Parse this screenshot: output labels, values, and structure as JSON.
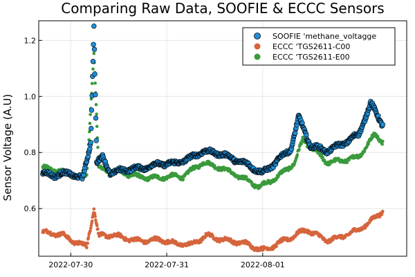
{
  "chart_data": {
    "type": "scatter",
    "title": "Comparing Raw Data, SOOFIE & ECCC Sensors",
    "xlabel": "",
    "ylabel": "Sensor Voltage (A.U)",
    "x_axis": "date",
    "x_ticks": [
      "2022-07-30",
      "2022-07-31",
      "2022-08-01"
    ],
    "xlim": [
      "2022-07-29 16:00",
      "2022-08-02 12:00"
    ],
    "y_ticks": [
      "0.6",
      "0.8",
      "1.0",
      "1.2"
    ],
    "ylim": [
      0.43,
      1.27
    ],
    "grid": true,
    "legend_position": "top-right",
    "series": [
      {
        "name": "SOOFIE 'methane_voltagge",
        "color": "#1f8ed8",
        "points": [
          [
            "2022-07-29 17:00",
            0.72
          ],
          [
            "2022-07-29 20:00",
            0.715
          ],
          [
            "2022-07-30 00:00",
            0.73
          ],
          [
            "2022-07-30 03:00",
            0.71
          ],
          [
            "2022-07-30 05:00",
            0.84
          ],
          [
            "2022-07-30 05:48",
            1.25
          ],
          [
            "2022-07-30 06:30",
            0.76
          ],
          [
            "2022-07-30 08:00",
            0.78
          ],
          [
            "2022-07-30 10:00",
            0.72
          ],
          [
            "2022-07-30 14:00",
            0.74
          ],
          [
            "2022-07-30 18:00",
            0.75
          ],
          [
            "2022-07-30 22:00",
            0.76
          ],
          [
            "2022-07-31 02:00",
            0.755
          ],
          [
            "2022-07-31 06:00",
            0.78
          ],
          [
            "2022-07-31 09:00",
            0.81
          ],
          [
            "2022-07-31 13:00",
            0.8
          ],
          [
            "2022-07-31 17:00",
            0.77
          ],
          [
            "2022-07-31 20:00",
            0.755
          ],
          [
            "2022-08-01 00:00",
            0.73
          ],
          [
            "2022-08-01 04:00",
            0.78
          ],
          [
            "2022-08-01 07:00",
            0.81
          ],
          [
            "2022-08-01 09:00",
            0.92
          ],
          [
            "2022-08-01 12:00",
            0.82
          ],
          [
            "2022-08-01 16:00",
            0.81
          ],
          [
            "2022-08-02 00:00",
            0.86
          ],
          [
            "2022-08-02 03:00",
            0.97
          ],
          [
            "2022-08-02 06:00",
            0.9
          ]
        ]
      },
      {
        "name": "ECCC 'TGS2611-C00",
        "color": "#d5653d",
        "points": [
          [
            "2022-07-29 17:00",
            0.51
          ],
          [
            "2022-07-29 22:00",
            0.505
          ],
          [
            "2022-07-30 02:00",
            0.48
          ],
          [
            "2022-07-30 04:00",
            0.47
          ],
          [
            "2022-07-30 05:48",
            0.6
          ],
          [
            "2022-07-30 07:00",
            0.5
          ],
          [
            "2022-07-30 10:00",
            0.5
          ],
          [
            "2022-07-30 16:00",
            0.49
          ],
          [
            "2022-07-30 22:00",
            0.49
          ],
          [
            "2022-07-31 02:00",
            0.47
          ],
          [
            "2022-07-31 06:00",
            0.47
          ],
          [
            "2022-07-31 10:00",
            0.51
          ],
          [
            "2022-07-31 16:00",
            0.48
          ],
          [
            "2022-07-31 20:00",
            0.47
          ],
          [
            "2022-08-01 00:00",
            0.455
          ],
          [
            "2022-08-01 04:00",
            0.48
          ],
          [
            "2022-08-01 08:00",
            0.5
          ],
          [
            "2022-08-01 11:00",
            0.52
          ],
          [
            "2022-08-01 16:00",
            0.49
          ],
          [
            "2022-08-02 00:00",
            0.52
          ],
          [
            "2022-08-02 03:00",
            0.55
          ],
          [
            "2022-08-02 06:00",
            0.59
          ]
        ]
      },
      {
        "name": "ECCC 'TGS2611-E00",
        "color": "#3a9a3d",
        "points": [
          [
            "2022-07-29 17:00",
            0.74
          ],
          [
            "2022-07-29 22:00",
            0.73
          ],
          [
            "2022-07-30 02:00",
            0.72
          ],
          [
            "2022-07-30 04:00",
            0.72
          ],
          [
            "2022-07-30 05:48",
            1.16
          ],
          [
            "2022-07-30 07:00",
            0.74
          ],
          [
            "2022-07-30 10:00",
            0.73
          ],
          [
            "2022-07-30 16:00",
            0.72
          ],
          [
            "2022-07-30 22:00",
            0.71
          ],
          [
            "2022-07-31 04:00",
            0.71
          ],
          [
            "2022-07-31 09:00",
            0.77
          ],
          [
            "2022-07-31 13:00",
            0.75
          ],
          [
            "2022-07-31 18:00",
            0.71
          ],
          [
            "2022-07-31 23:00",
            0.68
          ],
          [
            "2022-08-01 04:00",
            0.72
          ],
          [
            "2022-08-01 08:00",
            0.76
          ],
          [
            "2022-08-01 10:00",
            0.84
          ],
          [
            "2022-08-01 16:00",
            0.77
          ],
          [
            "2022-08-02 00:00",
            0.78
          ],
          [
            "2022-08-02 04:00",
            0.86
          ],
          [
            "2022-08-02 06:00",
            0.84
          ]
        ]
      }
    ]
  }
}
